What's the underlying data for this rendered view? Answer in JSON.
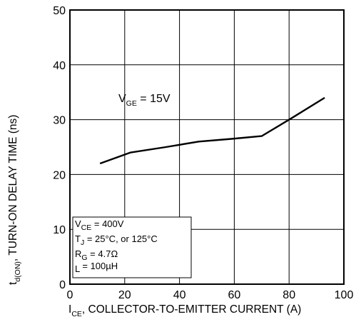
{
  "chart_data": {
    "type": "line",
    "title": "",
    "x": [
      11,
      22,
      35,
      47,
      59,
      70,
      81,
      93
    ],
    "series": [
      {
        "values": [
          22,
          24,
          25,
          26,
          26.5,
          27,
          30.3,
          34
        ]
      }
    ],
    "xlim": [
      0,
      100
    ],
    "ylim": [
      0,
      50
    ],
    "xticks": [
      "0",
      "20",
      "40",
      "60",
      "80",
      "100"
    ],
    "yticks": [
      "0",
      "10",
      "20",
      "30",
      "40",
      "50"
    ],
    "xlabel": {
      "main": "I",
      "sub": "CE",
      "rest": ", COLLECTOR-TO-EMITTER CURRENT (A)"
    },
    "ylabel": {
      "main": "t",
      "sub": "d(ON)",
      "rest": ", TURN-ON DELAY TIME (ns)"
    },
    "grid": true,
    "curve_label": {
      "main": "V",
      "sub": "GE",
      "rest": " = 15V"
    },
    "conditions": [
      {
        "main": "V",
        "sub": "CE",
        "rest": " = 400V"
      },
      {
        "main": "T",
        "sub": "J",
        "rest": " = 25°C, or 125°C"
      },
      {
        "main": "R",
        "sub": "G",
        "rest": " = 4.7Ω"
      },
      {
        "main": "L",
        "sub": "",
        "rest": " = 100µH"
      }
    ]
  }
}
